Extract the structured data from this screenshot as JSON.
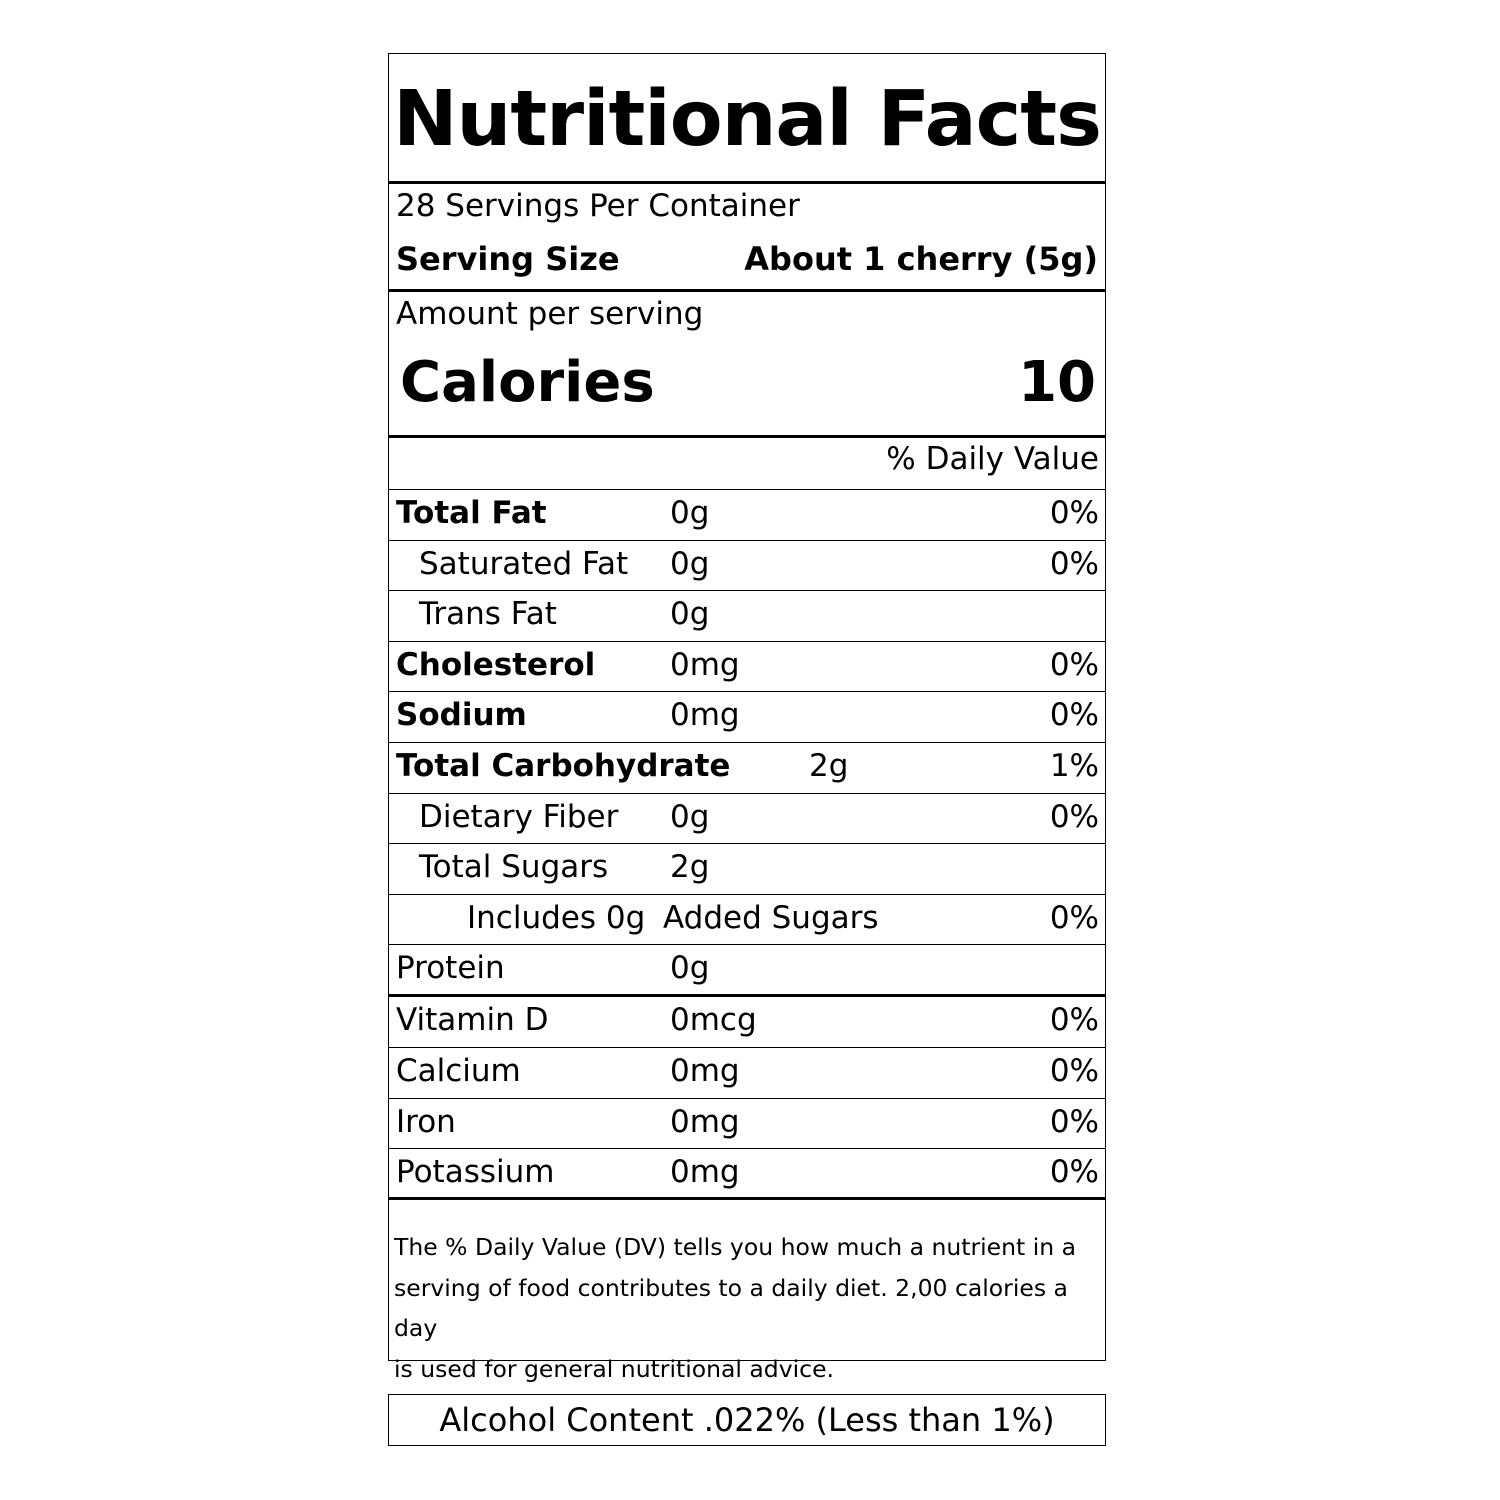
{
  "label": {
    "title": "Nutritional Facts",
    "servings_per_container": "28 Servings Per Container",
    "serving_size_label": "Serving Size",
    "serving_size_value": "About 1 cherry (5g)",
    "amount_per_serving": "Amount per serving",
    "calories_label": "Calories",
    "calories_value": "10",
    "daily_value_header": "% Daily Value",
    "nutrients": [
      {
        "name": "Total Fat",
        "amount": "0g",
        "dv": "0%"
      },
      {
        "name": "Saturated Fat",
        "amount": "0g",
        "dv": "0%"
      },
      {
        "name": "Trans Fat",
        "amount": "0g",
        "dv": ""
      },
      {
        "name": "Cholesterol",
        "amount": "0mg",
        "dv": "0%"
      },
      {
        "name": "Sodium",
        "amount": "0mg",
        "dv": "0%"
      },
      {
        "name": "Total Carbohydrate",
        "amount": "2g",
        "dv": "1%"
      },
      {
        "name": "Dietary Fiber",
        "amount": "0g",
        "dv": "0%"
      },
      {
        "name": "Total Sugars",
        "amount": "2g",
        "dv": ""
      },
      {
        "name": "Includes 0g",
        "amount": "Added Sugars",
        "dv": "0%"
      },
      {
        "name": "Protein",
        "amount": "0g",
        "dv": ""
      },
      {
        "name": "Vitamin D",
        "amount": "0mcg",
        "dv": "0%"
      },
      {
        "name": "Calcium",
        "amount": "0mg",
        "dv": "0%"
      },
      {
        "name": "Iron",
        "amount": "0mg",
        "dv": "0%"
      },
      {
        "name": "Potassium",
        "amount": "0mg",
        "dv": "0%"
      }
    ],
    "footnote": "The % Daily Value (DV) tells you how much a nutrient in a\nserving of food contributes to a daily diet.  2,00 calories a day\nis used for general nutritional advice."
  },
  "alcohol_content": "Alcohol Content .022% (Less than 1%)"
}
